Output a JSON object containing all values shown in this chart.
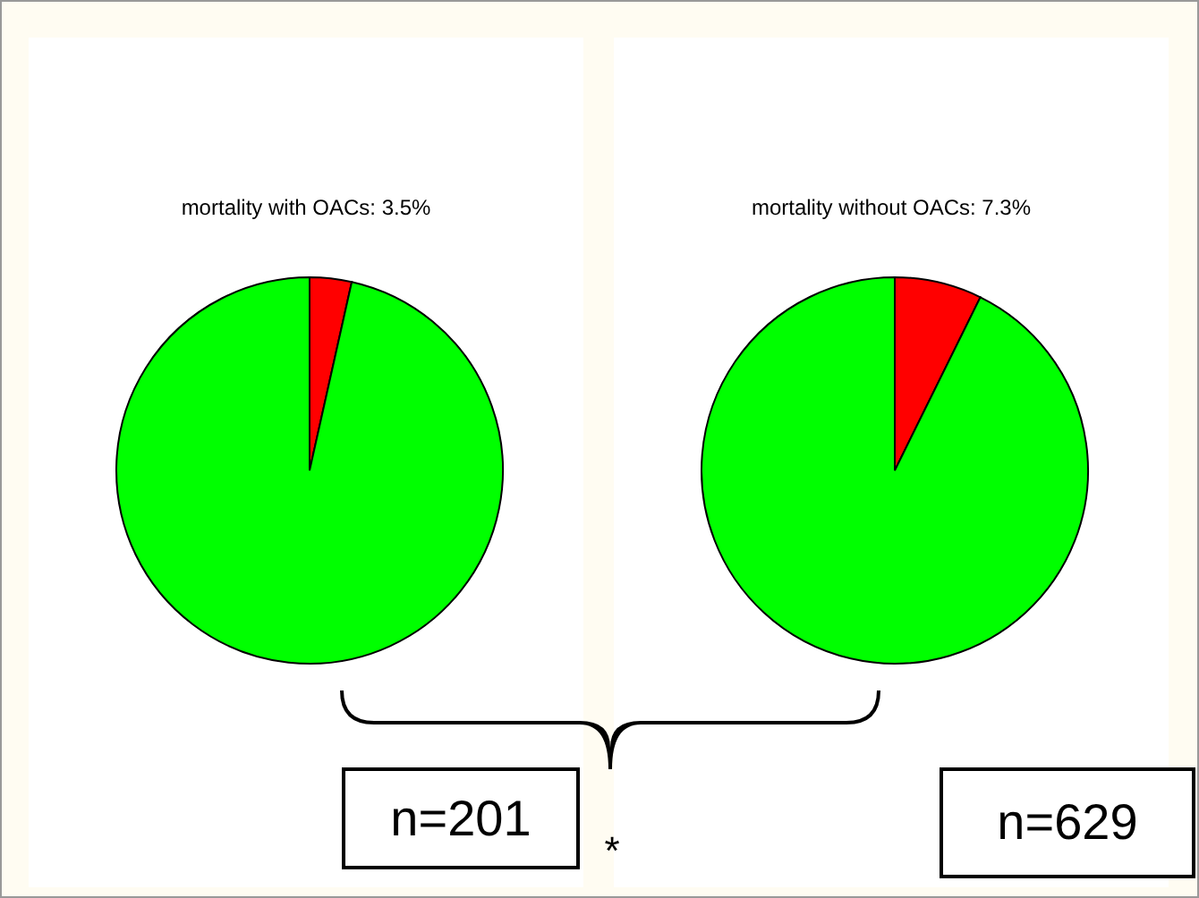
{
  "chart_data": [
    {
      "type": "pie",
      "title": "mortality with OACs: 3.5%",
      "categories": [
        null,
        null
      ],
      "values": [
        3.5,
        96.5
      ],
      "colors": [
        "#ff0000",
        "#00ff00"
      ],
      "legend": false,
      "annotations": [
        "n=201",
        "*"
      ]
    },
    {
      "type": "pie",
      "title": "mortality without OACs: 7.3%",
      "categories": [
        null,
        null
      ],
      "values": [
        7.3,
        92.7
      ],
      "colors": [
        "#ff0000",
        "#00ff00"
      ],
      "legend": false,
      "annotations": [
        "n=629"
      ]
    }
  ]
}
